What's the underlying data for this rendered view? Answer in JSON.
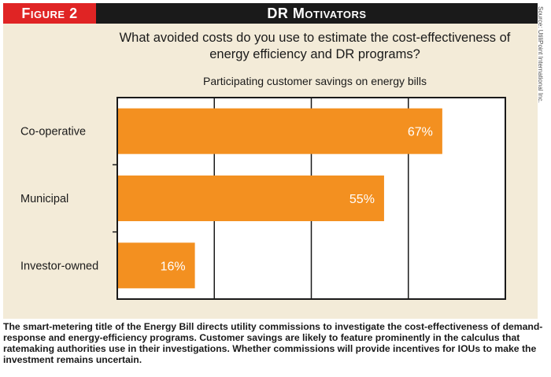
{
  "figure": {
    "label": "Figure 2",
    "title": "DR Motivators",
    "question": "What avoided costs do you use to estimate the cost-effectiveness of energy efficiency and DR programs?",
    "source": "Source: UtiliPoint International Inc."
  },
  "chart_data": {
    "type": "bar",
    "orientation": "horizontal",
    "title": "Participating customer savings on energy bills",
    "categories": [
      "Co-operative",
      "Municipal",
      "Investor-owned"
    ],
    "values": [
      67,
      55,
      16
    ],
    "value_labels": [
      "67%",
      "55%",
      "16%"
    ],
    "xlim": [
      0,
      80
    ],
    "grid": true,
    "bar_color": "#f39020"
  },
  "caption": "The smart-metering title of the Energy Bill directs utility commissions to investigate the cost-effectiveness of demand-response and energy-efficiency programs. Customer savings are likely to feature prominently in the calculus that ratemaking authorities use in their investigations. Whether commissions will provide incentives for IOUs to make the investment remains uncertain."
}
